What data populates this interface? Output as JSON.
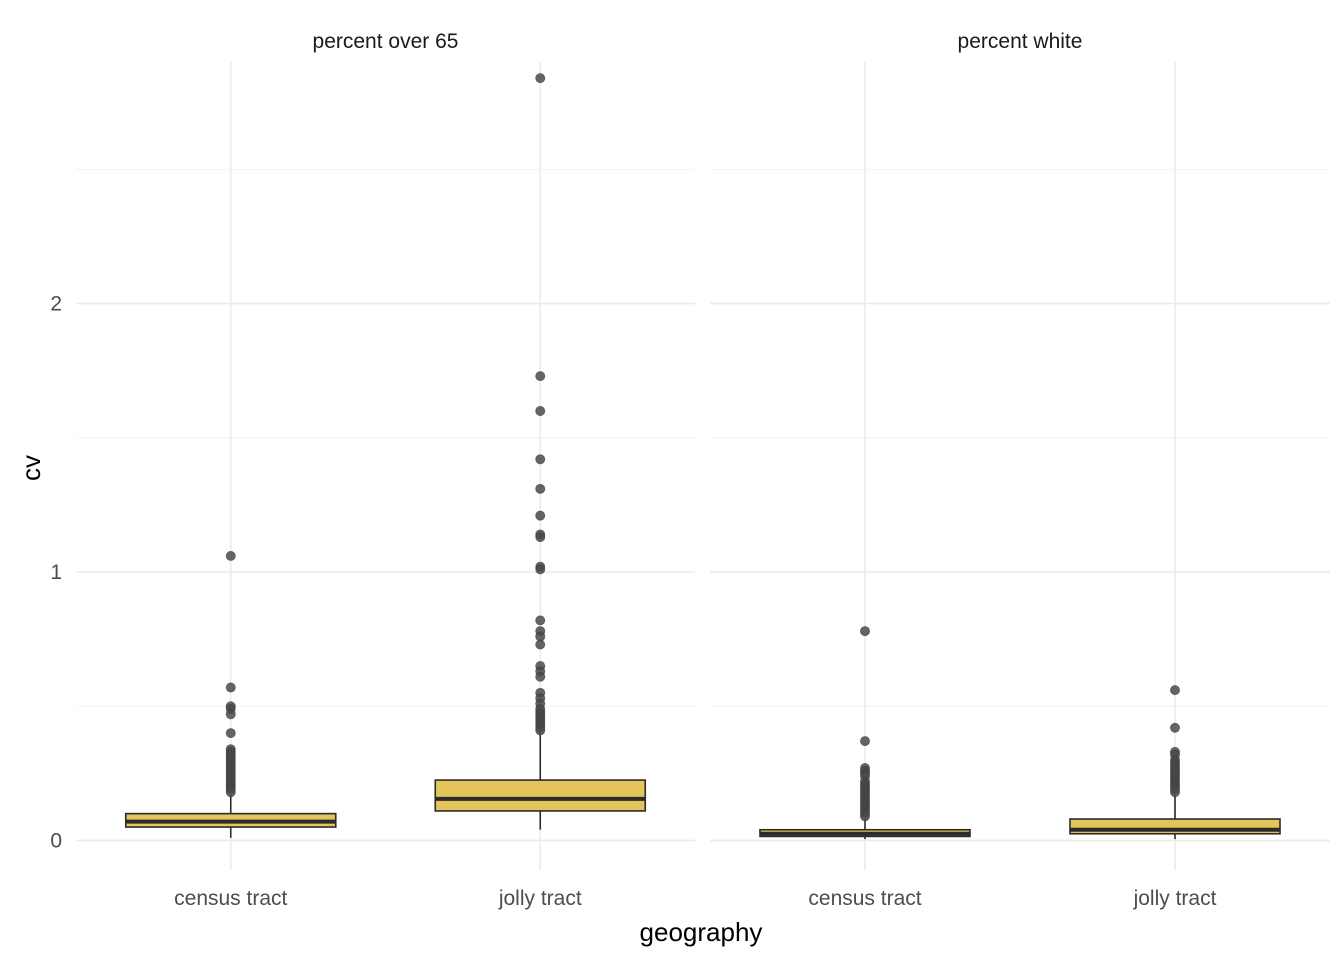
{
  "chart_data": {
    "type": "box",
    "xlabel": "geography",
    "ylabel": "cv",
    "ylim": [
      -0.11,
      2.9
    ],
    "y_ticks": [
      0,
      1,
      2
    ],
    "y_minor_ticks": [
      0.5,
      1.5,
      2.5
    ],
    "grid": true,
    "legend": "none",
    "box_fill": "#E3C55B",
    "box_stroke": "#2b2b2b",
    "point_color": "#4a4a4a",
    "categories": [
      "census tract",
      "jolly tract"
    ],
    "panels": [
      {
        "title": "percent over 65",
        "boxes": [
          {
            "category": "census tract",
            "q1": 0.05,
            "median": 0.07,
            "q3": 0.1,
            "whisker_low": 0.01,
            "whisker_high": 0.17,
            "outliers": [
              1.06,
              0.57,
              0.5,
              0.49,
              0.47,
              0.4,
              0.34,
              0.33,
              0.32,
              0.31,
              0.3,
              0.29,
              0.28,
              0.27,
              0.26,
              0.25,
              0.24,
              0.23,
              0.22,
              0.21,
              0.2,
              0.19,
              0.18
            ]
          },
          {
            "category": "jolly tract",
            "q1": 0.11,
            "median": 0.155,
            "q3": 0.225,
            "whisker_low": 0.04,
            "whisker_high": 0.4,
            "outliers": [
              2.84,
              1.73,
              1.6,
              1.42,
              1.31,
              1.21,
              1.14,
              1.13,
              1.02,
              1.01,
              0.82,
              0.78,
              0.76,
              0.73,
              0.65,
              0.63,
              0.61,
              0.55,
              0.53,
              0.51,
              0.49,
              0.48,
              0.47,
              0.46,
              0.45,
              0.44,
              0.43,
              0.42,
              0.41
            ]
          }
        ]
      },
      {
        "title": "percent white",
        "boxes": [
          {
            "category": "census tract",
            "q1": 0.015,
            "median": 0.025,
            "q3": 0.04,
            "whisker_low": 0.005,
            "whisker_high": 0.08,
            "outliers": [
              0.78,
              0.37,
              0.27,
              0.26,
              0.25,
              0.24,
              0.22,
              0.21,
              0.2,
              0.19,
              0.18,
              0.17,
              0.16,
              0.15,
              0.14,
              0.13,
              0.12,
              0.11,
              0.1,
              0.09
            ]
          },
          {
            "category": "jolly tract",
            "q1": 0.025,
            "median": 0.04,
            "q3": 0.08,
            "whisker_low": 0.005,
            "whisker_high": 0.17,
            "outliers": [
              0.56,
              0.42,
              0.33,
              0.32,
              0.3,
              0.29,
              0.28,
              0.27,
              0.26,
              0.25,
              0.24,
              0.23,
              0.22,
              0.21,
              0.2,
              0.19,
              0.18
            ]
          }
        ]
      }
    ]
  }
}
